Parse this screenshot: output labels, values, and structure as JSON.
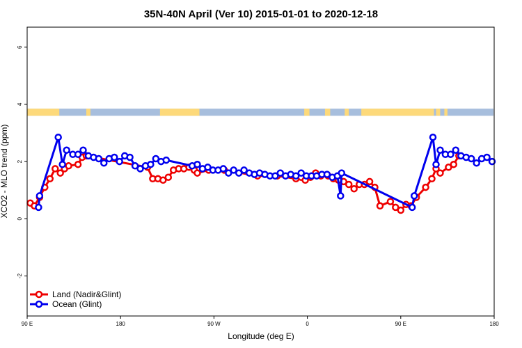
{
  "chart_data": {
    "type": "line",
    "title": "35N-40N April (Ver 10)   2015-01-01 to 2020-12-18",
    "xlabel": "Longitude (deg E)",
    "ylabel": "XCO2 - MLO trend (ppm)",
    "x_ticks": [
      {
        "value": 90,
        "label": "90 E"
      },
      {
        "value": 180,
        "label": "180"
      },
      {
        "value": 270,
        "label": "90 W"
      },
      {
        "value": 360,
        "label": "0"
      },
      {
        "value": 450,
        "label": "90 E"
      },
      {
        "value": 540,
        "label": "180"
      }
    ],
    "y_ticks": [
      {
        "value": -2,
        "label": "-2"
      },
      {
        "value": 0,
        "label": "0"
      },
      {
        "value": 2,
        "label": "2"
      },
      {
        "value": 4,
        "label": "4"
      },
      {
        "value": 6,
        "label": "6"
      }
    ],
    "xlim": [
      90,
      540
    ],
    "ylim": [
      -3.4,
      6.7
    ],
    "land_ocean_band": {
      "y_range": [
        3.6,
        3.85
      ],
      "ocean_color": "#a7bedd",
      "land_color": "#fdd97a",
      "land_segments": [
        [
          90,
          121
        ],
        [
          147,
          151
        ],
        [
          218,
          256
        ],
        [
          357,
          362
        ],
        [
          377,
          382
        ],
        [
          396,
          400
        ],
        [
          412,
          482
        ],
        [
          484,
          488
        ],
        [
          492,
          495
        ]
      ]
    },
    "series": [
      {
        "name": "Land (Nadir&Glint)",
        "color": "#ee0000",
        "x": [
          93,
          97,
          102,
          107,
          112,
          117,
          122,
          126,
          130,
          139,
          143,
          147,
          206,
          211,
          216,
          221,
          226,
          231,
          236,
          241,
          246,
          251,
          254,
          265,
          280,
          312,
          331,
          349,
          354,
          358,
          363,
          368,
          373,
          380,
          385,
          390,
          395,
          400,
          405,
          410,
          415,
          420,
          425,
          430,
          440,
          445,
          450,
          455,
          460,
          465,
          474,
          480,
          484,
          488,
          496,
          501,
          506
        ],
        "y": [
          0.55,
          0.45,
          0.75,
          1.1,
          1.4,
          1.75,
          1.6,
          1.75,
          1.85,
          1.9,
          2.15,
          2.2,
          1.8,
          1.4,
          1.4,
          1.35,
          1.45,
          1.7,
          1.75,
          1.75,
          1.8,
          1.7,
          1.6,
          1.7,
          1.7,
          1.5,
          1.5,
          1.4,
          1.45,
          1.35,
          1.45,
          1.6,
          1.5,
          1.5,
          1.4,
          1.35,
          1.3,
          1.2,
          1.05,
          1.2,
          1.2,
          1.3,
          1.1,
          0.45,
          0.6,
          0.4,
          0.3,
          0.5,
          0.45,
          0.75,
          1.1,
          1.4,
          1.75,
          1.6,
          1.8,
          1.9,
          2.2
        ]
      },
      {
        "name": "Ocean (Glint)",
        "color": "#0000ee",
        "x": [
          101,
          102,
          120,
          124,
          128,
          134,
          139,
          144,
          149,
          154,
          159,
          164,
          169,
          174,
          179,
          184,
          189,
          194,
          199,
          204,
          209,
          214,
          219,
          224,
          249,
          254,
          259,
          264,
          269,
          274,
          279,
          284,
          289,
          294,
          299,
          304,
          309,
          314,
          319,
          324,
          329,
          334,
          339,
          344,
          349,
          354,
          359,
          364,
          369,
          374,
          379,
          384,
          389,
          392,
          393,
          461,
          463,
          481,
          484,
          488,
          493,
          498,
          503,
          508,
          513,
          518,
          523,
          528,
          533,
          538
        ],
        "y": [
          0.4,
          0.8,
          2.85,
          1.9,
          2.4,
          2.25,
          2.25,
          2.4,
          2.2,
          2.15,
          2.1,
          1.95,
          2.1,
          2.15,
          2.0,
          2.2,
          2.15,
          1.85,
          1.75,
          1.85,
          1.9,
          2.1,
          2.0,
          2.05,
          1.85,
          1.9,
          1.75,
          1.8,
          1.7,
          1.7,
          1.75,
          1.6,
          1.7,
          1.6,
          1.7,
          1.6,
          1.55,
          1.6,
          1.55,
          1.5,
          1.5,
          1.6,
          1.5,
          1.55,
          1.5,
          1.6,
          1.5,
          1.5,
          1.5,
          1.55,
          1.55,
          1.45,
          1.5,
          0.8,
          1.6,
          0.4,
          0.8,
          2.85,
          1.9,
          2.4,
          2.25,
          2.25,
          2.4,
          2.2,
          2.15,
          2.1,
          1.95,
          2.1,
          2.15,
          2.0
        ]
      }
    ],
    "legend": {
      "position": "bottom-left",
      "entries": [
        "Land (Nadir&Glint)",
        "Ocean (Glint)"
      ]
    },
    "grid": false
  }
}
